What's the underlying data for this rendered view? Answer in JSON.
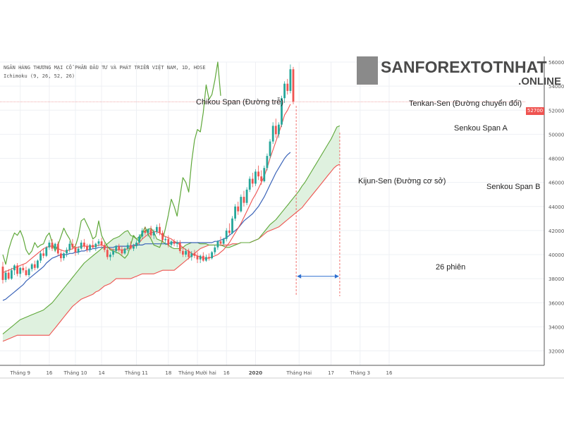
{
  "header": {
    "title": "NGÂN HÀNG THƯƠNG MẠI CỔ PHẦN ĐẦU TƯ VÀ PHÁT TRIỂN VIỆT NAM, 1D, HOSE",
    "indicator": "Ichimoku (9, 26, 52, 26)"
  },
  "logo": {
    "name": "SANFOREXTOTNHAT",
    "suffix": ".ONLINE"
  },
  "annotations": {
    "chikou": "Chikou Span (Đường trễ)",
    "tenkan": "Tenkan-Sen (Đường chuyển đổi)",
    "kijun": "Kijun-Sen  (Đường cơ sở)",
    "senkou_a": "Senkou Span A",
    "senkou_b": "Senkou Span B",
    "sessions": "26 phiên"
  },
  "colors": {
    "up": "#26a69a",
    "down": "#ef5350",
    "chikou": "#5fa83a",
    "tenkan": "#ef5350",
    "kijun": "#3a63b8",
    "span_a": "#5fa83a",
    "span_b": "#ef5350",
    "cloud": "#dff1df",
    "guide": "#2f6fd0"
  },
  "chart_data": {
    "type": "line",
    "ylim": [
      30800,
      56000
    ],
    "grid": true,
    "last_price": "52700",
    "y_ticks": [
      32000,
      34000,
      36000,
      38000,
      40000,
      42000,
      44000,
      46000,
      48000,
      50000,
      52000,
      54000,
      56000
    ],
    "x_tick_labels": [
      {
        "i": 6,
        "label": "Tháng 9"
      },
      {
        "i": 16,
        "label": "16"
      },
      {
        "i": 25,
        "label": "Tháng 10"
      },
      {
        "i": 34,
        "label": "14"
      },
      {
        "i": 46,
        "label": "Tháng 11"
      },
      {
        "i": 57,
        "label": "18"
      },
      {
        "i": 67,
        "label": "Tháng Mười hai"
      },
      {
        "i": 77,
        "label": "16"
      },
      {
        "i": 87,
        "label": "2020"
      },
      {
        "i": 102,
        "label": "Tháng Hai"
      },
      {
        "i": 113,
        "label": "17"
      },
      {
        "i": 123,
        "label": "Tháng 3"
      },
      {
        "i": 133,
        "label": "16"
      }
    ],
    "candles": [
      {
        "o": 39000,
        "h": 39400,
        "l": 37600,
        "c": 37900
      },
      {
        "o": 37900,
        "h": 38700,
        "l": 37700,
        "c": 38500
      },
      {
        "o": 38500,
        "h": 38800,
        "l": 37900,
        "c": 38000
      },
      {
        "o": 38000,
        "h": 38900,
        "l": 37900,
        "c": 38700
      },
      {
        "o": 38700,
        "h": 39200,
        "l": 38300,
        "c": 39100
      },
      {
        "o": 39100,
        "h": 39300,
        "l": 38200,
        "c": 38400
      },
      {
        "o": 38400,
        "h": 39000,
        "l": 38100,
        "c": 38900
      },
      {
        "o": 38900,
        "h": 39200,
        "l": 38500,
        "c": 38700
      },
      {
        "o": 38700,
        "h": 39000,
        "l": 38200,
        "c": 38300
      },
      {
        "o": 38300,
        "h": 38900,
        "l": 38100,
        "c": 38800
      },
      {
        "o": 38800,
        "h": 39300,
        "l": 38600,
        "c": 39200
      },
      {
        "o": 39200,
        "h": 39500,
        "l": 38700,
        "c": 38900
      },
      {
        "o": 38900,
        "h": 39600,
        "l": 38800,
        "c": 39500
      },
      {
        "o": 39500,
        "h": 40300,
        "l": 39300,
        "c": 40100
      },
      {
        "o": 40100,
        "h": 40500,
        "l": 39700,
        "c": 39900
      },
      {
        "o": 39900,
        "h": 40700,
        "l": 39800,
        "c": 40600
      },
      {
        "o": 40600,
        "h": 41200,
        "l": 40400,
        "c": 41000
      },
      {
        "o": 41000,
        "h": 41300,
        "l": 40300,
        "c": 40500
      },
      {
        "o": 40500,
        "h": 41000,
        "l": 40200,
        "c": 40900
      },
      {
        "o": 40900,
        "h": 41100,
        "l": 39900,
        "c": 40100
      },
      {
        "o": 40100,
        "h": 40400,
        "l": 39400,
        "c": 39700
      },
      {
        "o": 39700,
        "h": 40200,
        "l": 39500,
        "c": 40100
      },
      {
        "o": 40100,
        "h": 40600,
        "l": 39800,
        "c": 40400
      },
      {
        "o": 40400,
        "h": 41100,
        "l": 40200,
        "c": 40900
      },
      {
        "o": 40900,
        "h": 41300,
        "l": 40400,
        "c": 40600
      },
      {
        "o": 40600,
        "h": 40900,
        "l": 39900,
        "c": 40200
      },
      {
        "o": 40200,
        "h": 40700,
        "l": 40000,
        "c": 40500
      },
      {
        "o": 40500,
        "h": 41200,
        "l": 40400,
        "c": 41000
      },
      {
        "o": 41000,
        "h": 41300,
        "l": 40500,
        "c": 40700
      },
      {
        "o": 40700,
        "h": 40900,
        "l": 40200,
        "c": 40400
      },
      {
        "o": 40400,
        "h": 40900,
        "l": 40200,
        "c": 40800
      },
      {
        "o": 40800,
        "h": 41200,
        "l": 40500,
        "c": 40600
      },
      {
        "o": 40600,
        "h": 41000,
        "l": 40300,
        "c": 40900
      },
      {
        "o": 40900,
        "h": 41300,
        "l": 40700,
        "c": 41100
      },
      {
        "o": 41100,
        "h": 41400,
        "l": 40600,
        "c": 40800
      },
      {
        "o": 40800,
        "h": 41000,
        "l": 40200,
        "c": 40400
      },
      {
        "o": 40400,
        "h": 40600,
        "l": 39600,
        "c": 39800
      },
      {
        "o": 39800,
        "h": 40200,
        "l": 39500,
        "c": 40000
      },
      {
        "o": 40000,
        "h": 40500,
        "l": 39800,
        "c": 40300
      },
      {
        "o": 40300,
        "h": 40800,
        "l": 40100,
        "c": 40700
      },
      {
        "o": 40700,
        "h": 40900,
        "l": 40200,
        "c": 40400
      },
      {
        "o": 40400,
        "h": 40700,
        "l": 39900,
        "c": 40100
      },
      {
        "o": 40100,
        "h": 40600,
        "l": 40000,
        "c": 40500
      },
      {
        "o": 40500,
        "h": 41000,
        "l": 40300,
        "c": 40800
      },
      {
        "o": 40800,
        "h": 41100,
        "l": 40400,
        "c": 40500
      },
      {
        "o": 40500,
        "h": 40900,
        "l": 40300,
        "c": 40700
      },
      {
        "o": 40700,
        "h": 41200,
        "l": 40500,
        "c": 41000
      },
      {
        "o": 41000,
        "h": 41700,
        "l": 40800,
        "c": 41500
      },
      {
        "o": 41500,
        "h": 42200,
        "l": 41300,
        "c": 42000
      },
      {
        "o": 42000,
        "h": 42300,
        "l": 41600,
        "c": 41800
      },
      {
        "o": 41800,
        "h": 42200,
        "l": 41500,
        "c": 42100
      },
      {
        "o": 42100,
        "h": 42400,
        "l": 41400,
        "c": 41600
      },
      {
        "o": 41600,
        "h": 42100,
        "l": 41300,
        "c": 41900
      },
      {
        "o": 41900,
        "h": 42500,
        "l": 41700,
        "c": 42300
      },
      {
        "o": 42300,
        "h": 42600,
        "l": 41600,
        "c": 41800
      },
      {
        "o": 41800,
        "h": 42000,
        "l": 41000,
        "c": 41200
      },
      {
        "o": 41200,
        "h": 41500,
        "l": 40800,
        "c": 41300
      },
      {
        "o": 41300,
        "h": 41600,
        "l": 40600,
        "c": 40800
      },
      {
        "o": 40800,
        "h": 41200,
        "l": 40600,
        "c": 41100
      },
      {
        "o": 41100,
        "h": 41300,
        "l": 40700,
        "c": 40900
      },
      {
        "o": 40900,
        "h": 41200,
        "l": 40600,
        "c": 41000
      },
      {
        "o": 41000,
        "h": 41200,
        "l": 40100,
        "c": 40300
      },
      {
        "o": 40300,
        "h": 40600,
        "l": 39800,
        "c": 40000
      },
      {
        "o": 40000,
        "h": 40500,
        "l": 39800,
        "c": 40300
      },
      {
        "o": 40300,
        "h": 40500,
        "l": 39600,
        "c": 39800
      },
      {
        "o": 39800,
        "h": 40300,
        "l": 39500,
        "c": 40100
      },
      {
        "o": 40100,
        "h": 40400,
        "l": 39700,
        "c": 39900
      },
      {
        "o": 39900,
        "h": 40200,
        "l": 39300,
        "c": 39600
      },
      {
        "o": 39600,
        "h": 40000,
        "l": 39300,
        "c": 39900
      },
      {
        "o": 39900,
        "h": 40200,
        "l": 39400,
        "c": 39500
      },
      {
        "o": 39500,
        "h": 40000,
        "l": 39400,
        "c": 39800
      },
      {
        "o": 39800,
        "h": 40100,
        "l": 39500,
        "c": 39700
      },
      {
        "o": 39700,
        "h": 40300,
        "l": 39600,
        "c": 40200
      },
      {
        "o": 40200,
        "h": 40800,
        "l": 40000,
        "c": 40600
      },
      {
        "o": 40600,
        "h": 41200,
        "l": 40400,
        "c": 41100
      },
      {
        "o": 41100,
        "h": 41500,
        "l": 40700,
        "c": 40900
      },
      {
        "o": 40900,
        "h": 41400,
        "l": 40800,
        "c": 41300
      },
      {
        "o": 41300,
        "h": 42200,
        "l": 41100,
        "c": 42000
      },
      {
        "o": 42000,
        "h": 42600,
        "l": 41600,
        "c": 41800
      },
      {
        "o": 41800,
        "h": 43200,
        "l": 41700,
        "c": 43000
      },
      {
        "o": 43000,
        "h": 44200,
        "l": 42800,
        "c": 44000
      },
      {
        "o": 44000,
        "h": 44400,
        "l": 43300,
        "c": 43600
      },
      {
        "o": 43600,
        "h": 45000,
        "l": 43500,
        "c": 44800
      },
      {
        "o": 44800,
        "h": 45300,
        "l": 44000,
        "c": 44300
      },
      {
        "o": 44300,
        "h": 45600,
        "l": 44100,
        "c": 45400
      },
      {
        "o": 45400,
        "h": 46500,
        "l": 45200,
        "c": 46300
      },
      {
        "o": 46300,
        "h": 46800,
        "l": 45600,
        "c": 45900
      },
      {
        "o": 45900,
        "h": 47100,
        "l": 45700,
        "c": 46900
      },
      {
        "o": 46900,
        "h": 47400,
        "l": 46200,
        "c": 46500
      },
      {
        "o": 46500,
        "h": 47000,
        "l": 45800,
        "c": 46100
      },
      {
        "o": 46100,
        "h": 47400,
        "l": 46000,
        "c": 47200
      },
      {
        "o": 47200,
        "h": 48400,
        "l": 47000,
        "c": 48200
      },
      {
        "o": 48200,
        "h": 49600,
        "l": 48000,
        "c": 49400
      },
      {
        "o": 49400,
        "h": 51000,
        "l": 49200,
        "c": 50700
      },
      {
        "o": 50700,
        "h": 51300,
        "l": 49700,
        "c": 50000
      },
      {
        "o": 50000,
        "h": 51000,
        "l": 49700,
        "c": 50800
      },
      {
        "o": 50800,
        "h": 53200,
        "l": 50600,
        "c": 53000
      },
      {
        "o": 53000,
        "h": 54400,
        "l": 52600,
        "c": 54200
      },
      {
        "o": 54200,
        "h": 54600,
        "l": 53300,
        "c": 53600
      },
      {
        "o": 53600,
        "h": 55800,
        "l": 53400,
        "c": 55400
      },
      {
        "o": 55400,
        "h": 55600,
        "l": 52500,
        "c": 52700
      }
    ],
    "tenkan": [
      38500,
      38600,
      38700,
      38800,
      38900,
      39000,
      39100,
      39200,
      39300,
      39500,
      39700,
      39900,
      40100,
      40300,
      40500,
      40600,
      40700,
      40700,
      40600,
      40500,
      40400,
      40300,
      40300,
      40400,
      40500,
      40600,
      40600,
      40700,
      40700,
      40700,
      40700,
      40700,
      40700,
      40800,
      40800,
      40700,
      40600,
      40500,
      40400,
      40400,
      40400,
      40400,
      40400,
      40500,
      40600,
      40700,
      40800,
      41000,
      41300,
      41500,
      41700,
      41800,
      41900,
      41900,
      41800,
      41600,
      41500,
      41400,
      41300,
      41100,
      41000,
      40800,
      40600,
      40400,
      40300,
      40100,
      40000,
      39900,
      39800,
      39700,
      39700,
      39700,
      39800,
      39900,
      40000,
      40200,
      40400,
      40700,
      41000,
      41400,
      41800,
      42200,
      42600,
      43100,
      43600,
      44100,
      44600,
      45000,
      45500,
      46000,
      46500,
      47200,
      48000,
      48700,
      49400,
      50100,
      50800,
      51600,
      52000,
      52500
    ],
    "kijun": [
      36200,
      36300,
      36500,
      36700,
      36900,
      37100,
      37300,
      37500,
      37800,
      38000,
      38200,
      38400,
      38600,
      38800,
      39000,
      39300,
      39500,
      39700,
      39800,
      39900,
      40000,
      40000,
      40000,
      40100,
      40100,
      40200,
      40200,
      40300,
      40300,
      40400,
      40400,
      40500,
      40500,
      40600,
      40600,
      40600,
      40600,
      40600,
      40600,
      40700,
      40700,
      40700,
      40700,
      40700,
      40700,
      40800,
      40800,
      40800,
      40800,
      40900,
      40900,
      40900,
      40900,
      40900,
      40900,
      40900,
      40900,
      40900,
      41000,
      41000,
      41000,
      41000,
      41000,
      41000,
      41000,
      41000,
      41000,
      41000,
      41000,
      41000,
      41000,
      41000,
      41000,
      41100,
      41100,
      41200,
      41300,
      41400,
      41600,
      41800,
      42000,
      42200,
      42500,
      42800,
      43000,
      43200,
      43400,
      43700,
      44000,
      44400,
      44800,
      45300,
      45800,
      46300,
      46800,
      47200,
      47600,
      48000,
      48300,
      48500
    ],
    "chikou": [
      40000,
      39200,
      40400,
      41200,
      41800,
      41600,
      42000,
      41400,
      40400,
      40000,
      40300,
      41000,
      40600,
      40800,
      40900,
      41500,
      41800,
      41000,
      40300,
      40800,
      41500,
      42200,
      41700,
      41300,
      40600,
      40700,
      41500,
      42800,
      43000,
      42500,
      42000,
      41300,
      41500,
      42800,
      41600,
      41100,
      40700,
      40400,
      40300,
      40200,
      40100,
      39900,
      39700,
      40000,
      40800,
      41600,
      41300,
      41100,
      41800,
      42300,
      41700,
      41300,
      40800,
      40700,
      40600,
      41200,
      42200,
      43300,
      44600,
      44000,
      43200,
      44800,
      46400,
      46000,
      45200,
      47700,
      49500,
      50400,
      50200,
      51800,
      54100,
      52900,
      53300,
      54500,
      56000,
      53200
    ],
    "span_a": [
      33400,
      33600,
      33800,
      34000,
      34200,
      34400,
      34600,
      34700,
      34800,
      34900,
      35000,
      35100,
      35200,
      35300,
      35400,
      35600,
      35800,
      36000,
      36300,
      36600,
      36900,
      37200,
      37500,
      37800,
      38100,
      38400,
      38700,
      39000,
      39300,
      39500,
      39700,
      39900,
      40100,
      40300,
      40500,
      40700,
      40900,
      41100,
      41300,
      41400,
      41500,
      41700,
      41900,
      42000,
      41600,
      41500,
      41300,
      41500,
      41800,
      42000,
      42100,
      42200,
      41900,
      41300,
      41200,
      41100,
      40900,
      40800,
      40600,
      40500,
      40500,
      40500,
      40600,
      40800,
      40900,
      41000,
      41000,
      41000,
      40900,
      40900,
      40900,
      40800,
      40800,
      40800,
      40800,
      40800,
      40700,
      40600,
      40600,
      40700,
      40800,
      40900,
      41000,
      41000,
      41000,
      41000,
      41100,
      41200,
      41300,
      41600,
      41900,
      42200,
      42500,
      42700,
      42900,
      43200,
      43500,
      43800,
      44100,
      44400,
      44700,
      45000,
      45300,
      45700,
      46000,
      46400,
      46800,
      47200,
      47600,
      48000,
      48400,
      48800,
      49200,
      49600,
      50100,
      50600,
      50700
    ],
    "span_b": [
      32800,
      32900,
      33000,
      33100,
      33200,
      33300,
      33300,
      33300,
      33300,
      33300,
      33300,
      33300,
      33300,
      33300,
      33300,
      33300,
      33300,
      33600,
      33900,
      34200,
      34500,
      34800,
      35100,
      35400,
      35700,
      35900,
      36100,
      36300,
      36400,
      36500,
      36600,
      36700,
      36900,
      37000,
      37200,
      37400,
      37500,
      37600,
      37800,
      38000,
      38000,
      38000,
      38000,
      38000,
      38000,
      38100,
      38200,
      38300,
      38400,
      38400,
      38400,
      38400,
      38400,
      38500,
      38600,
      38700,
      38700,
      38700,
      38700,
      38700,
      38900,
      39100,
      39300,
      39500,
      39700,
      39900,
      40100,
      40300,
      40500,
      40600,
      40700,
      40800,
      40800,
      40800,
      40800,
      40800,
      40800,
      40800,
      40800,
      40900,
      40900,
      40900,
      41000,
      41000,
      41000,
      41000,
      41100,
      41200,
      41300,
      41500,
      41700,
      41900,
      42000,
      42100,
      42200,
      42300,
      42500,
      42700,
      42900,
      43100,
      43300,
      43500,
      43700,
      43900,
      44200,
      44500,
      44800,
      45100,
      45400,
      45700,
      46000,
      46300,
      46600,
      46900,
      47200,
      47400,
      47500
    ]
  }
}
